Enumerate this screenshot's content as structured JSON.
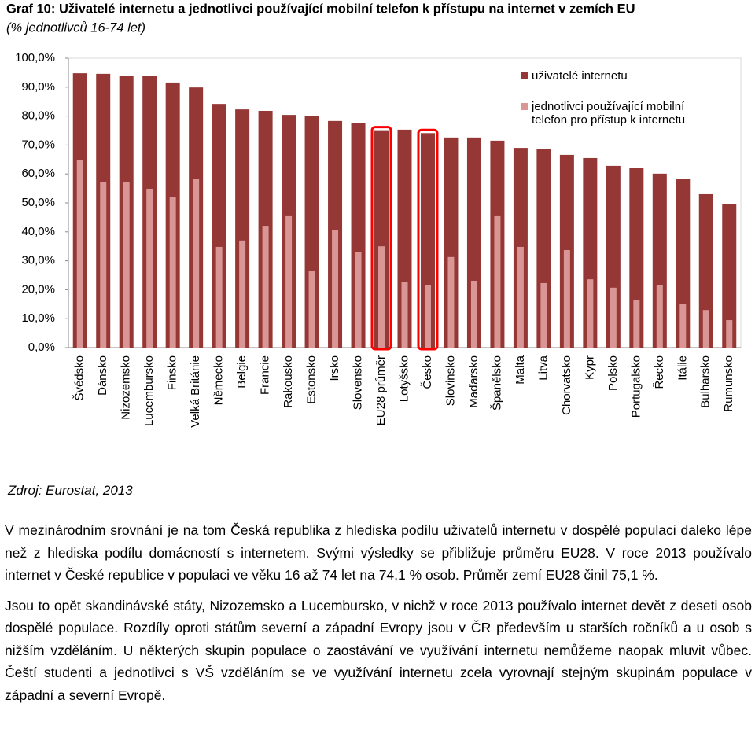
{
  "chart_data": {
    "type": "bar",
    "title": "Graf 10: Uživatelé internetu a jednotlivci používající mobilní telefon k přístupu na internet v zemích EU",
    "subtitle": "(% jednotlivců 16-74 let)",
    "categories": [
      "Švédsko",
      "Dánsko",
      "Nizozemsko",
      "Lucembursko",
      "Finsko",
      "Velká Británie",
      "Německo",
      "Belgie",
      "Francie",
      "Rakousko",
      "Estonsko",
      "Irsko",
      "Slovensko",
      "EU28 průměr",
      "Lotyšsko",
      "Česko",
      "Slovinsko",
      "Maďarsko",
      "Španělsko",
      "Malta",
      "Litva",
      "Chorvatsko",
      "Kypr",
      "Polsko",
      "Portugalsko",
      "Řecko",
      "Itálie",
      "Bulharsko",
      "Rumunsko"
    ],
    "series": [
      {
        "name": "uživatelé internetu",
        "color": "#953735",
        "values": [
          94.8,
          94.6,
          94.0,
          93.8,
          91.6,
          89.9,
          84.2,
          82.3,
          81.8,
          80.4,
          79.9,
          78.3,
          77.7,
          75.1,
          75.3,
          74.1,
          72.6,
          72.6,
          71.5,
          69.0,
          68.5,
          66.6,
          65.5,
          62.8,
          62.0,
          60.1,
          58.2,
          53.0,
          49.7
        ]
      },
      {
        "name": "jednotlivci používající mobilní telefon pro přístup k internetu",
        "color": "#d99694",
        "values": [
          64.7,
          57.3,
          57.3,
          54.9,
          51.9,
          58.2,
          34.8,
          37.0,
          42.1,
          45.4,
          26.4,
          40.5,
          32.9,
          35.0,
          22.6,
          21.7,
          31.3,
          23.1,
          45.4,
          34.8,
          22.3,
          33.7,
          23.6,
          20.7,
          16.3,
          21.5,
          15.2,
          13.0,
          9.5
        ]
      }
    ],
    "ylim": [
      0,
      100
    ],
    "yticks": [
      {
        "value": 0,
        "label": "0,0%"
      },
      {
        "value": 10,
        "label": "10,0%"
      },
      {
        "value": 20,
        "label": "20,0%"
      },
      {
        "value": 30,
        "label": "30,0%"
      },
      {
        "value": 40,
        "label": "40,0%"
      },
      {
        "value": 50,
        "label": "50,0%"
      },
      {
        "value": 60,
        "label": "60,0%"
      },
      {
        "value": 70,
        "label": "70,0%"
      },
      {
        "value": 80,
        "label": "80,0%"
      },
      {
        "value": 90,
        "label": "90,0%"
      },
      {
        "value": 100,
        "label": "100,0%"
      }
    ],
    "grid": false,
    "legend": "upper right",
    "highlight": [
      13,
      15
    ]
  },
  "source": "Zdroj: Eurostat, 2013",
  "paragraphs": [
    "V mezinárodním srovnání je na tom Česká republika z hlediska podílu uživatelů internetu v dospělé populaci daleko lépe než z hlediska podílu domácností s internetem. Svými výsledky se přibližuje průměru EU28. V roce 2013 používalo internet v České republice v populaci ve věku 16 až 74 let na 74,1 % osob. Průměr zemí EU28 činil 75,1 %.",
    "Jsou to opět skandinávské státy, Nizozemsko a Lucembursko, v nichž v roce 2013 používalo internet devět z deseti osob dospělé populace. Rozdíly oproti státům severní a západní Evropy jsou v ČR především u starších ročníků a u osob s nižším vzděláním. U některých skupin populace o zaostávání ve využívání internetu nemůžeme naopak mluvit vůbec. Čeští studenti a jednotlivci s VŠ vzděláním se ve využívání internetu zcela vyrovnají stejným skupinám populace v západní a severní Evropě."
  ]
}
